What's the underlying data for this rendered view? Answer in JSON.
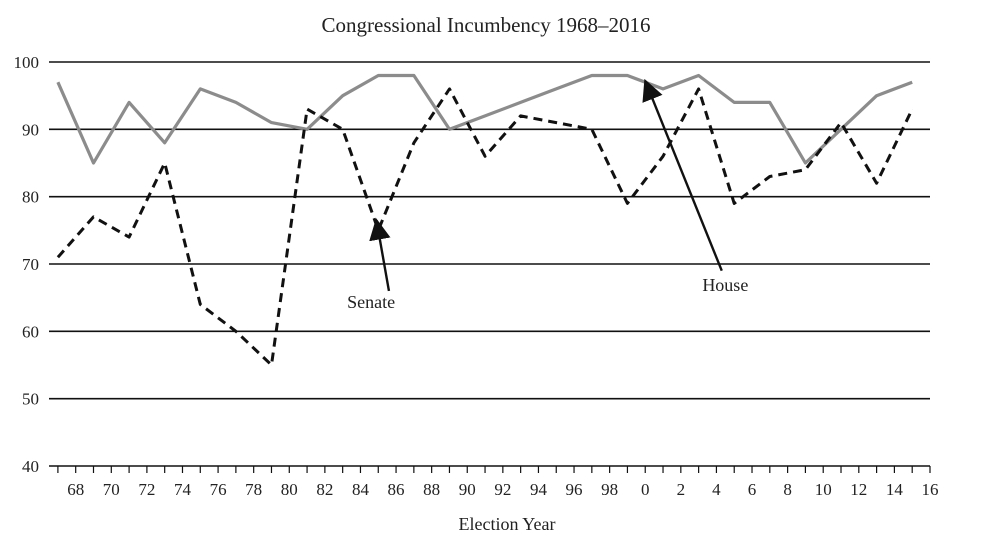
{
  "chart_data": {
    "type": "line",
    "title": "Congressional Incumbency 1968–2016",
    "xlabel": "Election Year",
    "ylabel": "",
    "xlim": [
      1966.5,
      2016
    ],
    "ylim": [
      40,
      100
    ],
    "yticks": [
      40,
      50,
      60,
      70,
      80,
      90,
      100
    ],
    "xticks": [
      1968,
      1970,
      1972,
      1974,
      1976,
      1978,
      1980,
      1982,
      1984,
      1986,
      1988,
      1990,
      1992,
      1994,
      1996,
      1998,
      2000,
      2002,
      2004,
      2006,
      2008,
      2010,
      2012,
      2014,
      2016
    ],
    "xtick_labels": [
      "68",
      "70",
      "72",
      "74",
      "76",
      "78",
      "80",
      "82",
      "84",
      "86",
      "88",
      "90",
      "92",
      "94",
      "96",
      "98",
      "0",
      "2",
      "4",
      "6",
      "8",
      "10",
      "12",
      "14",
      "16"
    ],
    "grid": "horizontal",
    "series": [
      {
        "name": "House",
        "style": "solid",
        "color": "#8c8c8c",
        "x": [
          1967,
          1969,
          1971,
          1973,
          1975,
          1977,
          1979,
          1981,
          1983,
          1985,
          1987,
          1989,
          1991,
          1993,
          1995,
          1997,
          1999,
          2001,
          2003,
          2005,
          2007,
          2009,
          2011,
          2013,
          2015
        ],
        "y": [
          97,
          85,
          94,
          88,
          96,
          94,
          91,
          90,
          95,
          98,
          98,
          90,
          92,
          94,
          96,
          98,
          98,
          96,
          98,
          94,
          94,
          85,
          90,
          95,
          97
        ]
      },
      {
        "name": "Senate",
        "style": "dashed",
        "color": "#111111",
        "x": [
          1967,
          1969,
          1971,
          1973,
          1975,
          1977,
          1979,
          1981,
          1983,
          1985,
          1987,
          1989,
          1991,
          1993,
          1995,
          1997,
          1999,
          2001,
          2003,
          2005,
          2007,
          2009,
          2011,
          2013,
          2015
        ],
        "y": [
          71,
          77,
          74,
          85,
          64,
          60,
          55,
          93,
          90,
          75,
          88,
          96,
          86,
          92,
          91,
          90,
          79,
          86,
          96,
          79,
          83,
          84,
          91,
          82,
          93
        ]
      }
    ],
    "annotations": [
      {
        "text": "Senate",
        "series": "Senate",
        "label_at": [
          1984.6,
          63.5
        ],
        "arrow_from": [
          1985.6,
          66
        ],
        "arrow_to": [
          1984.9,
          76.5
        ]
      },
      {
        "text": "House",
        "series": "House",
        "label_at": [
          2004.5,
          66
        ],
        "arrow_from": [
          2004.3,
          69
        ],
        "arrow_to": [
          2000,
          97.2
        ]
      }
    ]
  }
}
